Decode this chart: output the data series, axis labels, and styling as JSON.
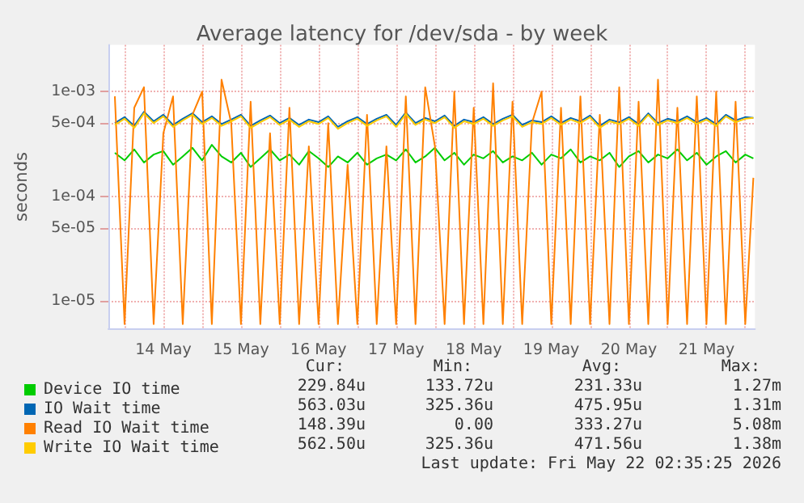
{
  "chart_data": {
    "type": "line",
    "title": "Average latency for /dev/sda - by week",
    "ylabel": "seconds",
    "log": "y",
    "grid": true,
    "legend": "bottom",
    "marker": "none",
    "line_style": "solid",
    "ylim": [
      5.4e-06,
      0.0028
    ],
    "yticks": [
      {
        "value": 1e-05,
        "label": "1e-05"
      },
      {
        "value": 5e-05,
        "label": "5e-05"
      },
      {
        "value": 0.0001,
        "label": "1e-04"
      },
      {
        "value": 0.0005,
        "label": "5e-04"
      },
      {
        "value": 0.001,
        "label": "1e-03"
      }
    ],
    "xlim": [
      "2026-05-13T19:00",
      "2026-05-22T03:00"
    ],
    "xticks": [
      {
        "value": "2026-05-14T00:00",
        "label": null
      },
      {
        "value": "2026-05-14T12:00",
        "label": "14 May"
      },
      {
        "value": "2026-05-15T00:00",
        "label": null
      },
      {
        "value": "2026-05-15T12:00",
        "label": "15 May"
      },
      {
        "value": "2026-05-16T00:00",
        "label": null
      },
      {
        "value": "2026-05-16T12:00",
        "label": "16 May"
      },
      {
        "value": "2026-05-17T00:00",
        "label": null
      },
      {
        "value": "2026-05-17T12:00",
        "label": "17 May"
      },
      {
        "value": "2026-05-18T00:00",
        "label": null
      },
      {
        "value": "2026-05-18T12:00",
        "label": "18 May"
      },
      {
        "value": "2026-05-19T00:00",
        "label": null
      },
      {
        "value": "2026-05-19T12:00",
        "label": "19 May"
      },
      {
        "value": "2026-05-20T00:00",
        "label": null
      },
      {
        "value": "2026-05-20T12:00",
        "label": "20 May"
      },
      {
        "value": "2026-05-21T00:00",
        "label": null
      },
      {
        "value": "2026-05-21T12:00",
        "label": "21 May"
      },
      {
        "value": "2026-05-22T00:00",
        "label": null
      }
    ],
    "x": [
      "2026-05-13T21:00",
      "2026-05-14T00:00",
      "2026-05-14T03:00",
      "2026-05-14T06:00",
      "2026-05-14T09:00",
      "2026-05-14T12:00",
      "2026-05-14T15:00",
      "2026-05-14T18:00",
      "2026-05-14T21:00",
      "2026-05-15T00:00",
      "2026-05-15T03:00",
      "2026-05-15T06:00",
      "2026-05-15T09:00",
      "2026-05-15T12:00",
      "2026-05-15T15:00",
      "2026-05-15T18:00",
      "2026-05-15T21:00",
      "2026-05-16T00:00",
      "2026-05-16T03:00",
      "2026-05-16T06:00",
      "2026-05-16T09:00",
      "2026-05-16T12:00",
      "2026-05-16T15:00",
      "2026-05-16T18:00",
      "2026-05-16T21:00",
      "2026-05-17T00:00",
      "2026-05-17T03:00",
      "2026-05-17T06:00",
      "2026-05-17T09:00",
      "2026-05-17T12:00",
      "2026-05-17T15:00",
      "2026-05-17T18:00",
      "2026-05-17T21:00",
      "2026-05-18T00:00",
      "2026-05-18T03:00",
      "2026-05-18T06:00",
      "2026-05-18T09:00",
      "2026-05-18T12:00",
      "2026-05-18T15:00",
      "2026-05-18T18:00",
      "2026-05-18T21:00",
      "2026-05-19T00:00",
      "2026-05-19T03:00",
      "2026-05-19T06:00",
      "2026-05-19T09:00",
      "2026-05-19T12:00",
      "2026-05-19T15:00",
      "2026-05-19T18:00",
      "2026-05-19T21:00",
      "2026-05-20T00:00",
      "2026-05-20T03:00",
      "2026-05-20T06:00",
      "2026-05-20T09:00",
      "2026-05-20T12:00",
      "2026-05-20T15:00",
      "2026-05-20T18:00",
      "2026-05-20T21:00",
      "2026-05-21T00:00",
      "2026-05-21T03:00",
      "2026-05-21T06:00",
      "2026-05-21T09:00",
      "2026-05-21T12:00",
      "2026-05-21T15:00",
      "2026-05-21T18:00",
      "2026-05-21T21:00",
      "2026-05-22T00:00",
      "2026-05-22T02:30"
    ],
    "series": [
      {
        "name": "Device IO time",
        "color": "#00cc00",
        "values": [
          0.00026,
          0.00022,
          0.00028,
          0.00021,
          0.00025,
          0.00027,
          0.0002,
          0.00024,
          0.00029,
          0.00022,
          0.00031,
          0.00024,
          0.00021,
          0.00026,
          0.00019,
          0.00023,
          0.00028,
          0.00022,
          0.00025,
          0.0002,
          0.00027,
          0.00023,
          0.00019,
          0.00024,
          0.00021,
          0.00026,
          0.0002,
          0.00023,
          0.00025,
          0.00022,
          0.00028,
          0.00021,
          0.00024,
          0.00029,
          0.00022,
          0.00026,
          0.0002,
          0.00025,
          0.00023,
          0.00027,
          0.00021,
          0.00024,
          0.00022,
          0.00026,
          0.0002,
          0.00025,
          0.00023,
          0.00028,
          0.00021,
          0.00024,
          0.00022,
          0.00026,
          0.00019,
          0.00024,
          0.00027,
          0.00021,
          0.00025,
          0.00023,
          0.00028,
          0.00022,
          0.00026,
          0.0002,
          0.00024,
          0.00027,
          0.00021,
          0.00025,
          0.00023
        ]
      },
      {
        "name": "IO Wait time",
        "color": "#0066b3",
        "values": [
          0.0005,
          0.00057,
          0.00047,
          0.00064,
          0.00052,
          0.0006,
          0.00048,
          0.00055,
          0.00062,
          0.00051,
          0.00058,
          0.00049,
          0.00054,
          0.0006,
          0.00047,
          0.00053,
          0.00059,
          0.0005,
          0.00056,
          0.00048,
          0.00054,
          0.00051,
          0.00058,
          0.00046,
          0.00052,
          0.00057,
          0.00049,
          0.00055,
          0.0006,
          0.00048,
          0.00063,
          0.0005,
          0.00056,
          0.00052,
          0.00059,
          0.00047,
          0.00054,
          0.00051,
          0.00057,
          0.00049,
          0.00055,
          0.0006,
          0.00048,
          0.00053,
          0.00051,
          0.00058,
          0.0005,
          0.00056,
          0.00052,
          0.00059,
          0.00047,
          0.00054,
          0.00051,
          0.00057,
          0.00049,
          0.00062,
          0.0005,
          0.00055,
          0.00052,
          0.00058,
          0.00051,
          0.00056,
          0.00049,
          0.0006,
          0.00053,
          0.00057,
          0.00056
        ]
      },
      {
        "name": "Read IO Wait time",
        "color": "#ff8000",
        "values": [
          0.0009,
          6e-06,
          0.0007,
          0.0011,
          6e-06,
          0.0004,
          0.0009,
          6e-06,
          0.0006,
          0.001,
          6e-06,
          0.0013,
          0.0005,
          6e-06,
          0.0008,
          6e-06,
          0.0004,
          6e-06,
          0.0007,
          6e-06,
          0.0003,
          6e-06,
          0.0005,
          6e-06,
          0.0002,
          6e-06,
          0.0006,
          6e-06,
          0.0003,
          6e-06,
          0.0009,
          6e-06,
          0.0011,
          0.0003,
          6e-06,
          0.001,
          6e-06,
          0.0007,
          6e-06,
          0.0012,
          6e-06,
          0.0008,
          6e-06,
          0.0005,
          0.001,
          6e-06,
          0.0007,
          6e-06,
          0.0009,
          6e-06,
          0.0006,
          6e-06,
          0.0011,
          6e-06,
          0.0008,
          6e-06,
          0.0013,
          6e-06,
          0.0007,
          6e-06,
          0.0009,
          6e-06,
          0.001,
          6e-06,
          0.0008,
          6e-06,
          0.00015
        ]
      },
      {
        "name": "Write IO Wait time",
        "color": "#ffcc00",
        "values": [
          0.00048,
          0.00055,
          0.00045,
          0.00062,
          0.0005,
          0.00058,
          0.00046,
          0.00053,
          0.0006,
          0.00049,
          0.00056,
          0.00047,
          0.00052,
          0.00058,
          0.00045,
          0.00051,
          0.00057,
          0.00048,
          0.00054,
          0.00046,
          0.00052,
          0.00049,
          0.00056,
          0.00044,
          0.0005,
          0.00055,
          0.00047,
          0.00053,
          0.00058,
          0.00046,
          0.00061,
          0.00048,
          0.00054,
          0.0005,
          0.00057,
          0.00045,
          0.00052,
          0.00049,
          0.00055,
          0.00047,
          0.00053,
          0.00058,
          0.00046,
          0.00051,
          0.00049,
          0.00056,
          0.00048,
          0.00054,
          0.0005,
          0.00057,
          0.00045,
          0.00052,
          0.00049,
          0.00055,
          0.00047,
          0.0006,
          0.00048,
          0.00053,
          0.0005,
          0.00056,
          0.00049,
          0.00054,
          0.00047,
          0.00058,
          0.00051,
          0.00055,
          0.00056
        ]
      }
    ],
    "annotations": [
      "Cur:",
      "Min:",
      "Avg:",
      "Max:",
      "229.84u",
      "133.72u",
      "231.33u",
      "1.27m",
      "563.03u",
      "325.36u",
      "475.95u",
      "1.31m",
      "148.39u",
      "0.00",
      "333.27u",
      "5.08m",
      "562.50u",
      "325.36u",
      "471.56u",
      "1.38m",
      "Last update: Fri May 22 02:35:25 2026"
    ]
  }
}
